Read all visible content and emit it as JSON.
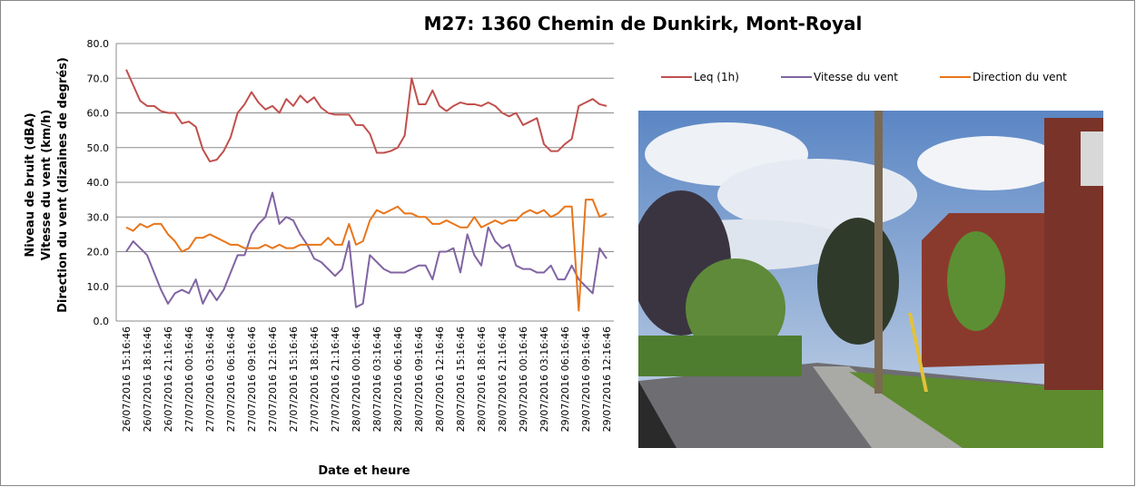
{
  "chart_data": {
    "type": "line",
    "title": "M27: 1360 Chemin de Dunkirk, Mont-Royal",
    "y_label_lines": [
      "Niveau de bruit (dBA)",
      "Vitesse du vent (km/h)",
      "Direction du vent (dizaines de degrés)"
    ],
    "x_label": "Date et heure",
    "categories": [
      "26/07/2016 15:16:46",
      null,
      null,
      "26/07/2016 18:16:46",
      null,
      null,
      "26/07/2016 21:16:46",
      null,
      null,
      "27/07/2016 00:16:46",
      null,
      null,
      "27/07/2016 03:16:46",
      null,
      null,
      "27/07/2016 06:16:46",
      null,
      null,
      "27/07/2016 09:16:46",
      null,
      null,
      "27/07/2016 12:16:46",
      null,
      null,
      "27/07/2016 15:16:46",
      null,
      null,
      "27/07/2016 18:16:46",
      null,
      null,
      "27/07/2016 21:16:46",
      null,
      null,
      "28/07/2016 00:16:46",
      null,
      null,
      "28/07/2016 03:16:46",
      null,
      null,
      "28/07/2016 06:16:46",
      null,
      null,
      "28/07/2016 09:16:46",
      null,
      null,
      "28/07/2016 12:16:46",
      null,
      null,
      "28/07/2016 15:16:46",
      null,
      null,
      "28/07/2016 18:16:46",
      null,
      null,
      "28/07/2016 21:16:46",
      null,
      null,
      "29/07/2016 00:16:46",
      null,
      null,
      "29/07/2016 03:16:46",
      null,
      null,
      "29/07/2016 06:16:46",
      null,
      null,
      "29/07/2016 09:16:46",
      null,
      null,
      "29/07/2016 12:16:46"
    ],
    "series": [
      {
        "name": "Leq (1h)",
        "color": "#c0504d",
        "values": [
          72.5,
          68,
          63.5,
          62,
          62,
          60.5,
          60,
          60,
          57,
          57.5,
          56,
          49.5,
          46,
          46.5,
          49,
          53,
          60,
          62.5,
          66,
          63,
          61,
          62,
          60,
          64,
          62,
          65,
          63,
          64.5,
          61.5,
          60,
          59.5,
          59.5,
          59.5,
          56.5,
          56.5,
          54,
          48.5,
          48.5,
          49,
          50,
          53.5,
          70,
          62.5,
          62.5,
          66.5,
          62,
          60.5,
          62,
          63,
          62.5,
          62.5,
          62,
          63,
          62,
          60,
          59,
          60,
          56.5,
          57.5,
          58.5,
          51,
          49,
          49,
          51,
          52.5,
          62,
          63,
          64,
          62.5,
          62
        ]
      },
      {
        "name": "Vitesse du vent",
        "color": "#8064a2",
        "values": [
          20,
          23,
          21,
          19,
          14,
          9,
          5,
          8,
          9,
          8,
          12,
          5,
          9,
          6,
          9,
          14,
          19,
          19,
          25,
          28,
          30,
          37,
          28,
          30,
          29,
          25,
          22,
          18,
          17,
          15,
          13,
          15,
          23,
          4,
          5,
          19,
          17,
          15,
          14,
          14,
          14,
          15,
          16,
          16,
          12,
          20,
          20,
          21,
          14,
          25,
          19,
          16,
          27,
          23,
          21,
          22,
          16,
          15,
          15,
          14,
          14,
          16,
          12,
          12,
          16,
          12,
          10,
          8,
          21,
          18
        ]
      },
      {
        "name": "Direction du vent",
        "color": "#e8751a",
        "values": [
          27,
          26,
          28,
          27,
          28,
          28,
          25,
          23,
          20,
          21,
          24,
          24,
          25,
          24,
          23,
          22,
          22,
          21,
          21,
          21,
          22,
          21,
          22,
          21,
          21,
          22,
          22,
          22,
          22,
          24,
          22,
          22,
          28,
          22,
          23,
          29,
          32,
          31,
          32,
          33,
          31,
          31,
          30,
          30,
          28,
          28,
          29,
          28,
          27,
          27,
          30,
          27,
          28,
          29,
          28,
          29,
          29,
          31,
          32,
          31,
          32,
          30,
          31,
          33,
          33,
          3,
          35,
          35,
          30,
          31
        ]
      }
    ],
    "ylim": [
      0,
      80
    ],
    "yticks": [
      {
        "value": 0,
        "label": "0.0"
      },
      {
        "value": 10,
        "label": "10.0"
      },
      {
        "value": 20,
        "label": "20.0"
      },
      {
        "value": 30,
        "label": "30.0"
      },
      {
        "value": 40,
        "label": "40.0"
      },
      {
        "value": 50,
        "label": "50.0"
      },
      {
        "value": 60,
        "label": "60.0"
      },
      {
        "value": 70,
        "label": "70.0"
      },
      {
        "value": 80,
        "label": "80.0"
      }
    ],
    "grid": true,
    "legend": "top"
  }
}
